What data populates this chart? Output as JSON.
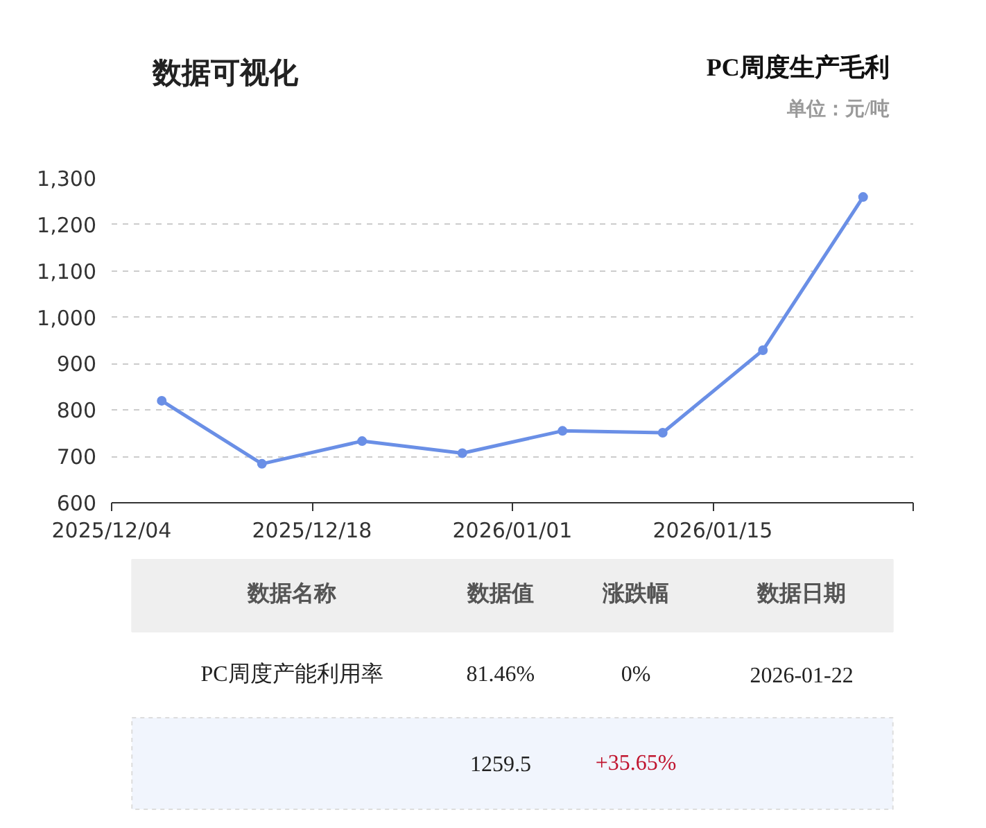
{
  "chart_data": {
    "type": "line",
    "title": "PC周度生产毛利",
    "subtitle": "单位：元/吨",
    "x": [
      "2025-12-07T12:00",
      "2025-12-14T12:00",
      "2025-12-21T12:00",
      "2025-12-28T12:00",
      "2026-01-04T12:00",
      "2026-01-11T12:00",
      "2026-01-18T12:00",
      "2026-01-25T12:00"
    ],
    "series": [
      {
        "color": "#6a8fe6",
        "values": [
          820,
          684,
          733,
          707,
          755,
          751,
          929,
          1259.5
        ]
      }
    ],
    "xlim": [
      "2025-12-04",
      "2026-01-29"
    ],
    "xticks": [
      {
        "value": "2025-12-04",
        "label": "2025/12/04"
      },
      {
        "value": "2025-12-18",
        "label": "2025/12/18"
      },
      {
        "value": "2026-01-01",
        "label": "2026/01/01"
      },
      {
        "value": "2026-01-15",
        "label": "2026/01/15"
      },
      {
        "value": "2026-01-29",
        "label": null
      }
    ],
    "ylim": [
      600,
      1300
    ],
    "yticks": [
      {
        "value": 600,
        "label": "600"
      },
      {
        "value": 700,
        "label": "700"
      },
      {
        "value": 800,
        "label": "800"
      },
      {
        "value": 900,
        "label": "900"
      },
      {
        "value": 1000,
        "label": "1,000"
      },
      {
        "value": 1100,
        "label": "1,100"
      },
      {
        "value": 1200,
        "label": "1,200"
      },
      {
        "value": 1300,
        "label": "1,300"
      }
    ],
    "grid": "y",
    "marker": "circle",
    "line_style": "solid",
    "annotations": [
      "数据可视化",
      "数据名称",
      "数据值",
      "涨跌幅",
      "数据日期",
      "PC周度产能利用率",
      "81.46%",
      "0%",
      "2026-01-22",
      "1259.5",
      "+35.65%"
    ]
  }
}
